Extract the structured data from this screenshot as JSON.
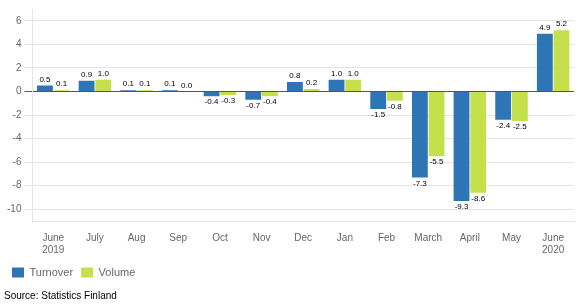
{
  "chart_data": {
    "type": "bar",
    "categories": [
      "June\n2019",
      "July",
      "Aug",
      "Sep",
      "Oct",
      "Nov",
      "Dec",
      "Jan",
      "Feb",
      "March",
      "April",
      "May",
      "June\n2020"
    ],
    "series": [
      {
        "name": "Turnover",
        "color": "#2E75B6",
        "values": [
          0.5,
          0.9,
          0.1,
          0.1,
          -0.4,
          -0.7,
          0.8,
          1.0,
          -1.5,
          -7.3,
          -9.3,
          -2.4,
          4.9
        ],
        "value_labels": [
          "0.5",
          "0.9",
          "0.1",
          "0.1",
          "-0.4",
          "-0.7",
          "0.8",
          "1.0",
          "-1.5",
          "-7.3",
          "-9.3",
          "-2.4",
          "4.9"
        ]
      },
      {
        "name": "Volume",
        "color": "#C5E04B",
        "values": [
          0.1,
          1.0,
          0.1,
          0.0,
          -0.3,
          -0.4,
          0.2,
          1.0,
          -0.8,
          -5.5,
          -8.6,
          -2.5,
          5.2
        ],
        "value_labels": [
          "0.1",
          "1.0",
          "0.1",
          "0.0",
          "-0.3",
          "-0.4",
          "0.2",
          "1.0",
          "-0.8",
          "-5.5",
          "-8.6",
          "-2.5",
          "5.2"
        ]
      }
    ],
    "ylim": [
      -11,
      7
    ],
    "yticks": [
      -10,
      -8,
      -6,
      -4,
      -2,
      0,
      2,
      4,
      6
    ],
    "grid": true,
    "legend": "lower left",
    "data_labels": true,
    "annotations": [
      "Source: Statistics Finland"
    ]
  }
}
